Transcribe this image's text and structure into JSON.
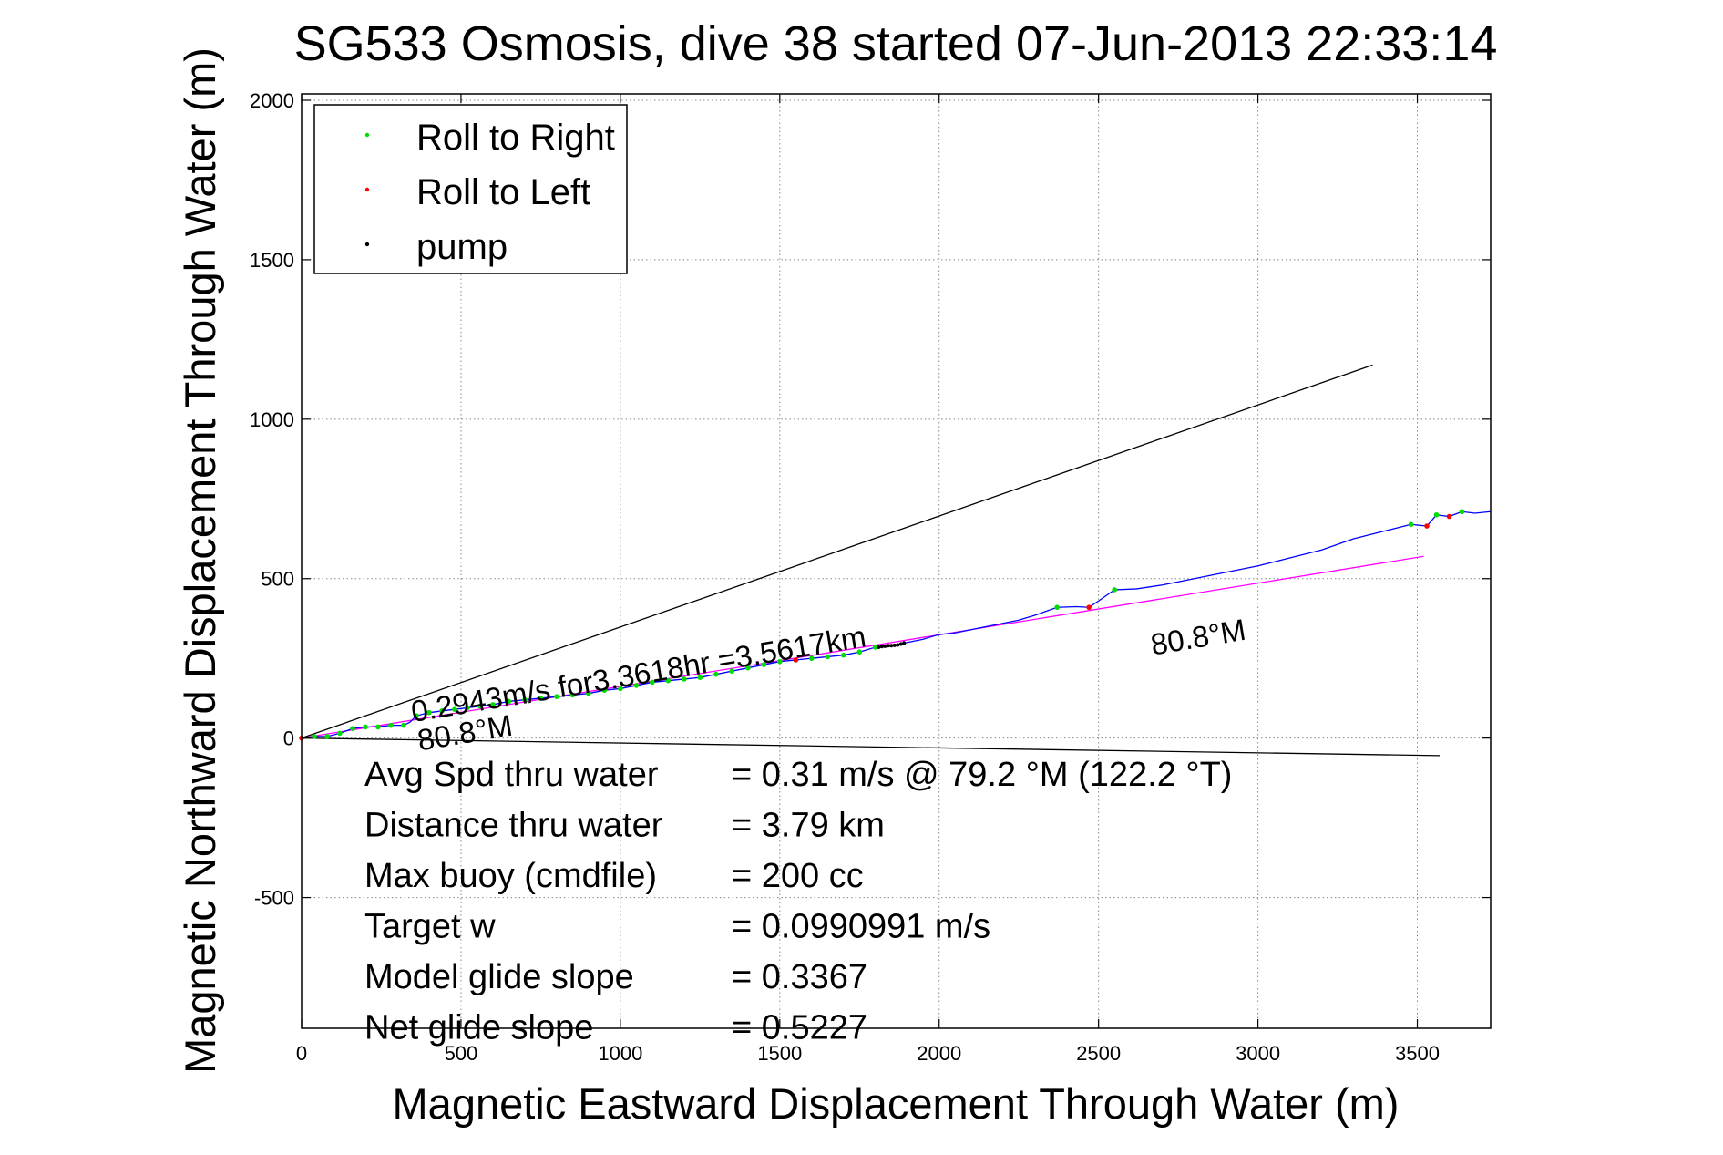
{
  "chart_data": {
    "type": "line",
    "title": "SG533 Osmosis, dive 38 started 07-Jun-2013 22:33:14",
    "xlabel": "Magnetic Eastward Displacement Through Water (m)",
    "ylabel": "Magnetic Northward Displacement Through Water (m)",
    "xlim": [
      0,
      3730
    ],
    "ylim": [
      -910,
      2020
    ],
    "xticks": [
      "0",
      "500",
      "1000",
      "1500",
      "2000",
      "2500",
      "3000",
      "3500"
    ],
    "yticks": [
      "-500",
      "0",
      "500",
      "1000",
      "1500",
      "2000"
    ],
    "grid": true,
    "legend_position": "top-left",
    "legend": [
      {
        "label": "Roll to Right",
        "color": "#00dd00"
      },
      {
        "label": "Roll to Left",
        "color": "#ff0000"
      },
      {
        "label": "pump",
        "color": "#000000"
      }
    ],
    "series": [
      {
        "style": "track",
        "color": "#0000ff",
        "x": [
          0,
          40,
          80,
          120,
          160,
          200,
          240,
          280,
          320,
          340,
          360,
          400,
          440,
          480,
          520,
          560,
          600,
          650,
          700,
          750,
          800,
          850,
          900,
          950,
          1000,
          1050,
          1100,
          1150,
          1200,
          1250,
          1300,
          1350,
          1400,
          1450,
          1500,
          1550,
          1600,
          1650,
          1700,
          1750,
          1800,
          1850,
          1900,
          1950,
          2000,
          2050,
          2100,
          2150,
          2200,
          2250,
          2300,
          2370,
          2430,
          2470,
          2500,
          2550,
          2620,
          2700,
          2800,
          2900,
          3000,
          3100,
          3200,
          3300,
          3400,
          3480,
          3530,
          3560,
          3600,
          3640,
          3680,
          3730
        ],
        "y": [
          0,
          5,
          5,
          15,
          30,
          35,
          35,
          40,
          40,
          50,
          70,
          80,
          85,
          90,
          95,
          100,
          105,
          115,
          120,
          125,
          130,
          135,
          140,
          150,
          155,
          165,
          175,
          180,
          185,
          190,
          200,
          210,
          220,
          230,
          240,
          245,
          250,
          255,
          260,
          270,
          285,
          290,
          300,
          310,
          325,
          330,
          340,
          350,
          360,
          370,
          385,
          410,
          412,
          410,
          430,
          465,
          468,
          480,
          500,
          520,
          540,
          565,
          590,
          625,
          650,
          670,
          665,
          700,
          695,
          710,
          705,
          710
        ]
      },
      {
        "style": "roll-right-points",
        "color": "#00dd00",
        "x": [
          40,
          80,
          120,
          160,
          200,
          240,
          280,
          320,
          360,
          400,
          440,
          480,
          520,
          560,
          600,
          650,
          700,
          750,
          800,
          850,
          900,
          950,
          1000,
          1050,
          1100,
          1150,
          1200,
          1250,
          1300,
          1350,
          1400,
          1450,
          1500,
          1550,
          1600,
          1650,
          1700,
          1750,
          1800,
          2370,
          2550,
          3480,
          3560,
          3640
        ],
        "y": [
          5,
          5,
          15,
          30,
          35,
          35,
          40,
          40,
          70,
          80,
          85,
          90,
          95,
          100,
          105,
          115,
          120,
          125,
          130,
          135,
          140,
          150,
          155,
          165,
          175,
          180,
          185,
          190,
          200,
          210,
          220,
          230,
          240,
          245,
          250,
          255,
          260,
          270,
          285,
          410,
          465,
          670,
          700,
          710
        ]
      },
      {
        "style": "roll-left-points",
        "color": "#ff0000",
        "x": [
          0,
          1550,
          2470,
          3530,
          3600
        ],
        "y": [
          0,
          245,
          410,
          665,
          695
        ]
      },
      {
        "style": "pump-points",
        "color": "#000000",
        "x": [
          1810,
          1820,
          1830,
          1840,
          1850,
          1860,
          1870,
          1880,
          1890
        ],
        "y": [
          285,
          287,
          288,
          290,
          290,
          291,
          292,
          295,
          298
        ]
      }
    ],
    "reference_lines": [
      {
        "style": "upper",
        "color": "#000000",
        "x": [
          0,
          3360
        ],
        "y": [
          0,
          1170
        ]
      },
      {
        "style": "lower",
        "color": "#000000",
        "x": [
          0,
          3570
        ],
        "y": [
          0,
          -55
        ]
      },
      {
        "style": "heading",
        "color": "#ff00ff",
        "x": [
          0,
          3520
        ],
        "y": [
          0,
          570
        ]
      }
    ],
    "annotations": [
      {
        "text": "0.2943m/s for3.3618hr =3.5617km",
        "x": 350,
        "y": 50,
        "rotate": -9.5
      },
      {
        "text": "80.8°M",
        "x": 370,
        "y": -40,
        "rotate": -9.5
      },
      {
        "text": "80.8°M",
        "x": 2670,
        "y": 260,
        "rotate": -9.5
      }
    ],
    "stats": [
      {
        "label": "Avg Spd thru water",
        "value": "=  0.31 m/s @  79.2 °M (122.2 °T)"
      },
      {
        "label": "Distance thru water",
        "value": "=  3.79 km"
      },
      {
        "label": "Max buoy (cmdfile)",
        "value": "= 200 cc"
      },
      {
        "label": "Target w",
        "value": "= 0.0990991 m/s"
      },
      {
        "label": "Model glide slope",
        "value": "= 0.3367"
      },
      {
        "label": "Net glide slope",
        "value": "= 0.5227"
      }
    ]
  }
}
